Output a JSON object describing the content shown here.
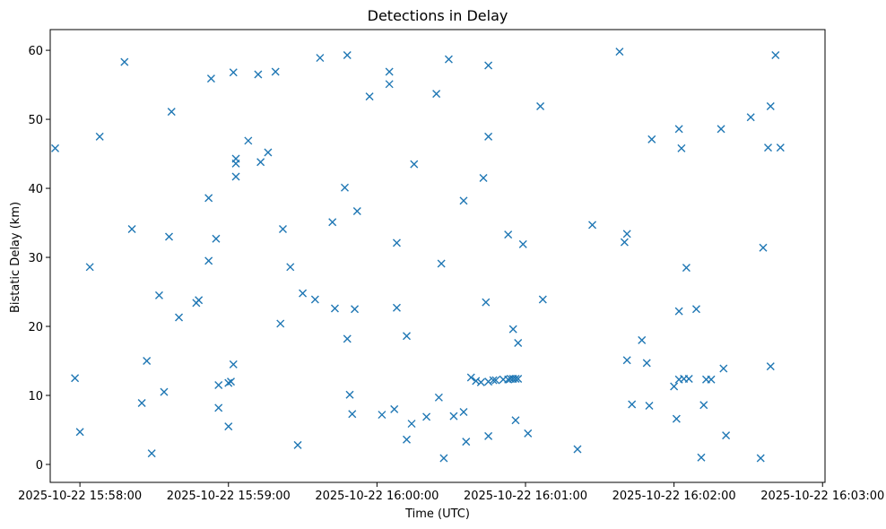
{
  "chart_data": {
    "type": "scatter",
    "title": "Detections in Delay",
    "xlabel": "Time (UTC)",
    "ylabel": "Bistatic Delay (km)",
    "xlim": [
      "2025-10-22 15:57:48",
      "2025-10-22 16:03:01"
    ],
    "ylim": [
      -2.6,
      63.0
    ],
    "grid": false,
    "marker": "x",
    "color": "#1f77b4",
    "x_ticks": [
      "2025-10-22 15:58:00",
      "2025-10-22 15:59:00",
      "2025-10-22 16:00:00",
      "2025-10-22 16:01:00",
      "2025-10-22 16:02:00",
      "2025-10-22 16:03:00"
    ],
    "y_ticks": [
      0,
      10,
      20,
      30,
      40,
      50,
      60
    ],
    "series": [
      {
        "points": [
          [
            "2025-10-22 15:57:50",
            45.8
          ],
          [
            "2025-10-22 15:57:58",
            12.5
          ],
          [
            "2025-10-22 15:58:00",
            4.7
          ],
          [
            "2025-10-22 15:58:04",
            28.6
          ],
          [
            "2025-10-22 15:58:08",
            47.5
          ],
          [
            "2025-10-22 15:58:18",
            58.3
          ],
          [
            "2025-10-22 15:58:21",
            34.1
          ],
          [
            "2025-10-22 15:58:25",
            8.9
          ],
          [
            "2025-10-22 15:58:27",
            15.0
          ],
          [
            "2025-10-22 15:58:29",
            1.6
          ],
          [
            "2025-10-22 15:58:32",
            24.5
          ],
          [
            "2025-10-22 15:58:34",
            10.5
          ],
          [
            "2025-10-22 15:58:36",
            33.0
          ],
          [
            "2025-10-22 15:58:37",
            51.1
          ],
          [
            "2025-10-22 15:58:40",
            21.3
          ],
          [
            "2025-10-22 15:58:47",
            23.4
          ],
          [
            "2025-10-22 15:58:48",
            23.8
          ],
          [
            "2025-10-22 15:58:52",
            38.6
          ],
          [
            "2025-10-22 15:58:52",
            29.5
          ],
          [
            "2025-10-22 15:58:53",
            55.9
          ],
          [
            "2025-10-22 15:58:55",
            32.7
          ],
          [
            "2025-10-22 15:58:56",
            11.5
          ],
          [
            "2025-10-22 15:58:56",
            8.2
          ],
          [
            "2025-10-22 15:59:00",
            5.5
          ],
          [
            "2025-10-22 15:59:00",
            11.8
          ],
          [
            "2025-10-22 15:59:01",
            12.0
          ],
          [
            "2025-10-22 15:59:02",
            56.8
          ],
          [
            "2025-10-22 15:59:03",
            44.3
          ],
          [
            "2025-10-22 15:59:03",
            43.6
          ],
          [
            "2025-10-22 15:59:03",
            41.7
          ],
          [
            "2025-10-22 15:59:02",
            14.5
          ],
          [
            "2025-10-22 15:59:08",
            46.9
          ],
          [
            "2025-10-22 15:59:12",
            56.5
          ],
          [
            "2025-10-22 15:59:13",
            43.8
          ],
          [
            "2025-10-22 15:59:16",
            45.2
          ],
          [
            "2025-10-22 15:59:19",
            56.9
          ],
          [
            "2025-10-22 15:59:21",
            20.4
          ],
          [
            "2025-10-22 15:59:22",
            34.1
          ],
          [
            "2025-10-22 15:59:25",
            28.6
          ],
          [
            "2025-10-22 15:59:28",
            2.8
          ],
          [
            "2025-10-22 15:59:30",
            24.8
          ],
          [
            "2025-10-22 15:59:35",
            23.9
          ],
          [
            "2025-10-22 15:59:37",
            58.9
          ],
          [
            "2025-10-22 15:59:42",
            35.1
          ],
          [
            "2025-10-22 15:59:43",
            22.6
          ],
          [
            "2025-10-22 15:59:47",
            40.1
          ],
          [
            "2025-10-22 15:59:48",
            59.3
          ],
          [
            "2025-10-22 15:59:48",
            18.2
          ],
          [
            "2025-10-22 15:59:49",
            10.1
          ],
          [
            "2025-10-22 15:59:50",
            7.3
          ],
          [
            "2025-10-22 15:59:51",
            22.5
          ],
          [
            "2025-10-22 15:59:52",
            36.7
          ],
          [
            "2025-10-22 15:59:57",
            53.3
          ],
          [
            "2025-10-22 16:00:02",
            7.2
          ],
          [
            "2025-10-22 16:00:05",
            56.9
          ],
          [
            "2025-10-22 16:00:05",
            55.1
          ],
          [
            "2025-10-22 16:00:07",
            8.0
          ],
          [
            "2025-10-22 16:00:08",
            32.1
          ],
          [
            "2025-10-22 16:00:08",
            22.7
          ],
          [
            "2025-10-22 16:00:12",
            18.6
          ],
          [
            "2025-10-22 16:00:12",
            3.6
          ],
          [
            "2025-10-22 16:00:15",
            43.5
          ],
          [
            "2025-10-22 16:00:14",
            5.9
          ],
          [
            "2025-10-22 16:00:20",
            6.9
          ],
          [
            "2025-10-22 16:00:24",
            53.7
          ],
          [
            "2025-10-22 16:00:25",
            9.7
          ],
          [
            "2025-10-22 16:00:27",
            0.9
          ],
          [
            "2025-10-22 16:00:26",
            29.1
          ],
          [
            "2025-10-22 16:00:29",
            58.7
          ],
          [
            "2025-10-22 16:00:31",
            7.0
          ],
          [
            "2025-10-22 16:00:35",
            38.2
          ],
          [
            "2025-10-22 16:00:36",
            3.3
          ],
          [
            "2025-10-22 16:00:35",
            7.6
          ],
          [
            "2025-10-22 16:00:38",
            12.6
          ],
          [
            "2025-10-22 16:00:40",
            12.1
          ],
          [
            "2025-10-22 16:00:42",
            11.9
          ],
          [
            "2025-10-22 16:00:43",
            41.5
          ],
          [
            "2025-10-22 16:00:44",
            23.5
          ],
          [
            "2025-10-22 16:00:45",
            47.5
          ],
          [
            "2025-10-22 16:00:45",
            57.8
          ],
          [
            "2025-10-22 16:00:45",
            4.1
          ],
          [
            "2025-10-22 16:00:45",
            12.0
          ],
          [
            "2025-10-22 16:00:47",
            12.2
          ],
          [
            "2025-10-22 16:00:48",
            12.2
          ],
          [
            "2025-10-22 16:00:51",
            12.3
          ],
          [
            "2025-10-22 16:00:53",
            12.3
          ],
          [
            "2025-10-22 16:00:54",
            12.4
          ],
          [
            "2025-10-22 16:00:55",
            12.4
          ],
          [
            "2025-10-22 16:00:56",
            12.4
          ],
          [
            "2025-10-22 16:00:57",
            12.4
          ],
          [
            "2025-10-22 16:00:53",
            33.3
          ],
          [
            "2025-10-22 16:00:55",
            19.6
          ],
          [
            "2025-10-22 16:00:57",
            17.6
          ],
          [
            "2025-10-22 16:00:56",
            6.4
          ],
          [
            "2025-10-22 16:00:59",
            31.9
          ],
          [
            "2025-10-22 16:01:01",
            4.5
          ],
          [
            "2025-10-22 16:01:06",
            51.9
          ],
          [
            "2025-10-22 16:01:07",
            23.9
          ],
          [
            "2025-10-22 16:01:21",
            2.2
          ],
          [
            "2025-10-22 16:01:27",
            34.7
          ],
          [
            "2025-10-22 16:01:38",
            59.8
          ],
          [
            "2025-10-22 16:01:40",
            32.2
          ],
          [
            "2025-10-22 16:01:41",
            33.4
          ],
          [
            "2025-10-22 16:01:41",
            15.1
          ],
          [
            "2025-10-22 16:01:43",
            8.7
          ],
          [
            "2025-10-22 16:01:47",
            18.0
          ],
          [
            "2025-10-22 16:01:49",
            14.7
          ],
          [
            "2025-10-22 16:01:50",
            8.5
          ],
          [
            "2025-10-22 16:01:51",
            47.1
          ],
          [
            "2025-10-22 16:02:00",
            11.3
          ],
          [
            "2025-10-22 16:02:01",
            6.6
          ],
          [
            "2025-10-22 16:02:02",
            12.3
          ],
          [
            "2025-10-22 16:02:04",
            12.4
          ],
          [
            "2025-10-22 16:02:02",
            48.6
          ],
          [
            "2025-10-22 16:02:03",
            45.8
          ],
          [
            "2025-10-22 16:02:02",
            22.2
          ],
          [
            "2025-10-22 16:02:05",
            28.5
          ],
          [
            "2025-10-22 16:02:06",
            12.4
          ],
          [
            "2025-10-22 16:02:09",
            22.5
          ],
          [
            "2025-10-22 16:02:11",
            1.0
          ],
          [
            "2025-10-22 16:02:12",
            8.6
          ],
          [
            "2025-10-22 16:02:13",
            12.3
          ],
          [
            "2025-10-22 16:02:15",
            12.3
          ],
          [
            "2025-10-22 16:02:19",
            48.6
          ],
          [
            "2025-10-22 16:02:20",
            13.9
          ],
          [
            "2025-10-22 16:02:21",
            4.2
          ],
          [
            "2025-10-22 16:02:31",
            50.3
          ],
          [
            "2025-10-22 16:02:35",
            0.9
          ],
          [
            "2025-10-22 16:02:36",
            31.4
          ],
          [
            "2025-10-22 16:02:38",
            45.9
          ],
          [
            "2025-10-22 16:02:39",
            51.9
          ],
          [
            "2025-10-22 16:02:39",
            14.2
          ],
          [
            "2025-10-22 16:02:41",
            59.3
          ],
          [
            "2025-10-22 16:02:43",
            45.9
          ]
        ]
      }
    ]
  }
}
